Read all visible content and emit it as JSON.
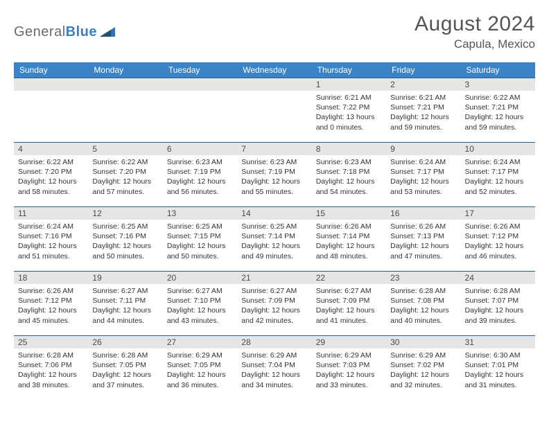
{
  "logo": {
    "text_gray": "General",
    "text_blue": "Blue"
  },
  "title": "August 2024",
  "location": "Capula, Mexico",
  "colors": {
    "header_bg": "#3a83c6",
    "header_text": "#ffffff",
    "daynum_bg": "#e6e6e6",
    "rule": "#2a5e8a",
    "body_text": "#333333"
  },
  "dow": [
    "Sunday",
    "Monday",
    "Tuesday",
    "Wednesday",
    "Thursday",
    "Friday",
    "Saturday"
  ],
  "weeks": [
    [
      null,
      null,
      null,
      null,
      {
        "n": "1",
        "sr": "Sunrise: 6:21 AM",
        "ss": "Sunset: 7:22 PM",
        "dl1": "Daylight: 13 hours",
        "dl2": "and 0 minutes."
      },
      {
        "n": "2",
        "sr": "Sunrise: 6:21 AM",
        "ss": "Sunset: 7:21 PM",
        "dl1": "Daylight: 12 hours",
        "dl2": "and 59 minutes."
      },
      {
        "n": "3",
        "sr": "Sunrise: 6:22 AM",
        "ss": "Sunset: 7:21 PM",
        "dl1": "Daylight: 12 hours",
        "dl2": "and 59 minutes."
      }
    ],
    [
      {
        "n": "4",
        "sr": "Sunrise: 6:22 AM",
        "ss": "Sunset: 7:20 PM",
        "dl1": "Daylight: 12 hours",
        "dl2": "and 58 minutes."
      },
      {
        "n": "5",
        "sr": "Sunrise: 6:22 AM",
        "ss": "Sunset: 7:20 PM",
        "dl1": "Daylight: 12 hours",
        "dl2": "and 57 minutes."
      },
      {
        "n": "6",
        "sr": "Sunrise: 6:23 AM",
        "ss": "Sunset: 7:19 PM",
        "dl1": "Daylight: 12 hours",
        "dl2": "and 56 minutes."
      },
      {
        "n": "7",
        "sr": "Sunrise: 6:23 AM",
        "ss": "Sunset: 7:19 PM",
        "dl1": "Daylight: 12 hours",
        "dl2": "and 55 minutes."
      },
      {
        "n": "8",
        "sr": "Sunrise: 6:23 AM",
        "ss": "Sunset: 7:18 PM",
        "dl1": "Daylight: 12 hours",
        "dl2": "and 54 minutes."
      },
      {
        "n": "9",
        "sr": "Sunrise: 6:24 AM",
        "ss": "Sunset: 7:17 PM",
        "dl1": "Daylight: 12 hours",
        "dl2": "and 53 minutes."
      },
      {
        "n": "10",
        "sr": "Sunrise: 6:24 AM",
        "ss": "Sunset: 7:17 PM",
        "dl1": "Daylight: 12 hours",
        "dl2": "and 52 minutes."
      }
    ],
    [
      {
        "n": "11",
        "sr": "Sunrise: 6:24 AM",
        "ss": "Sunset: 7:16 PM",
        "dl1": "Daylight: 12 hours",
        "dl2": "and 51 minutes."
      },
      {
        "n": "12",
        "sr": "Sunrise: 6:25 AM",
        "ss": "Sunset: 7:16 PM",
        "dl1": "Daylight: 12 hours",
        "dl2": "and 50 minutes."
      },
      {
        "n": "13",
        "sr": "Sunrise: 6:25 AM",
        "ss": "Sunset: 7:15 PM",
        "dl1": "Daylight: 12 hours",
        "dl2": "and 50 minutes."
      },
      {
        "n": "14",
        "sr": "Sunrise: 6:25 AM",
        "ss": "Sunset: 7:14 PM",
        "dl1": "Daylight: 12 hours",
        "dl2": "and 49 minutes."
      },
      {
        "n": "15",
        "sr": "Sunrise: 6:26 AM",
        "ss": "Sunset: 7:14 PM",
        "dl1": "Daylight: 12 hours",
        "dl2": "and 48 minutes."
      },
      {
        "n": "16",
        "sr": "Sunrise: 6:26 AM",
        "ss": "Sunset: 7:13 PM",
        "dl1": "Daylight: 12 hours",
        "dl2": "and 47 minutes."
      },
      {
        "n": "17",
        "sr": "Sunrise: 6:26 AM",
        "ss": "Sunset: 7:12 PM",
        "dl1": "Daylight: 12 hours",
        "dl2": "and 46 minutes."
      }
    ],
    [
      {
        "n": "18",
        "sr": "Sunrise: 6:26 AM",
        "ss": "Sunset: 7:12 PM",
        "dl1": "Daylight: 12 hours",
        "dl2": "and 45 minutes."
      },
      {
        "n": "19",
        "sr": "Sunrise: 6:27 AM",
        "ss": "Sunset: 7:11 PM",
        "dl1": "Daylight: 12 hours",
        "dl2": "and 44 minutes."
      },
      {
        "n": "20",
        "sr": "Sunrise: 6:27 AM",
        "ss": "Sunset: 7:10 PM",
        "dl1": "Daylight: 12 hours",
        "dl2": "and 43 minutes."
      },
      {
        "n": "21",
        "sr": "Sunrise: 6:27 AM",
        "ss": "Sunset: 7:09 PM",
        "dl1": "Daylight: 12 hours",
        "dl2": "and 42 minutes."
      },
      {
        "n": "22",
        "sr": "Sunrise: 6:27 AM",
        "ss": "Sunset: 7:09 PM",
        "dl1": "Daylight: 12 hours",
        "dl2": "and 41 minutes."
      },
      {
        "n": "23",
        "sr": "Sunrise: 6:28 AM",
        "ss": "Sunset: 7:08 PM",
        "dl1": "Daylight: 12 hours",
        "dl2": "and 40 minutes."
      },
      {
        "n": "24",
        "sr": "Sunrise: 6:28 AM",
        "ss": "Sunset: 7:07 PM",
        "dl1": "Daylight: 12 hours",
        "dl2": "and 39 minutes."
      }
    ],
    [
      {
        "n": "25",
        "sr": "Sunrise: 6:28 AM",
        "ss": "Sunset: 7:06 PM",
        "dl1": "Daylight: 12 hours",
        "dl2": "and 38 minutes."
      },
      {
        "n": "26",
        "sr": "Sunrise: 6:28 AM",
        "ss": "Sunset: 7:05 PM",
        "dl1": "Daylight: 12 hours",
        "dl2": "and 37 minutes."
      },
      {
        "n": "27",
        "sr": "Sunrise: 6:29 AM",
        "ss": "Sunset: 7:05 PM",
        "dl1": "Daylight: 12 hours",
        "dl2": "and 36 minutes."
      },
      {
        "n": "28",
        "sr": "Sunrise: 6:29 AM",
        "ss": "Sunset: 7:04 PM",
        "dl1": "Daylight: 12 hours",
        "dl2": "and 34 minutes."
      },
      {
        "n": "29",
        "sr": "Sunrise: 6:29 AM",
        "ss": "Sunset: 7:03 PM",
        "dl1": "Daylight: 12 hours",
        "dl2": "and 33 minutes."
      },
      {
        "n": "30",
        "sr": "Sunrise: 6:29 AM",
        "ss": "Sunset: 7:02 PM",
        "dl1": "Daylight: 12 hours",
        "dl2": "and 32 minutes."
      },
      {
        "n": "31",
        "sr": "Sunrise: 6:30 AM",
        "ss": "Sunset: 7:01 PM",
        "dl1": "Daylight: 12 hours",
        "dl2": "and 31 minutes."
      }
    ]
  ]
}
